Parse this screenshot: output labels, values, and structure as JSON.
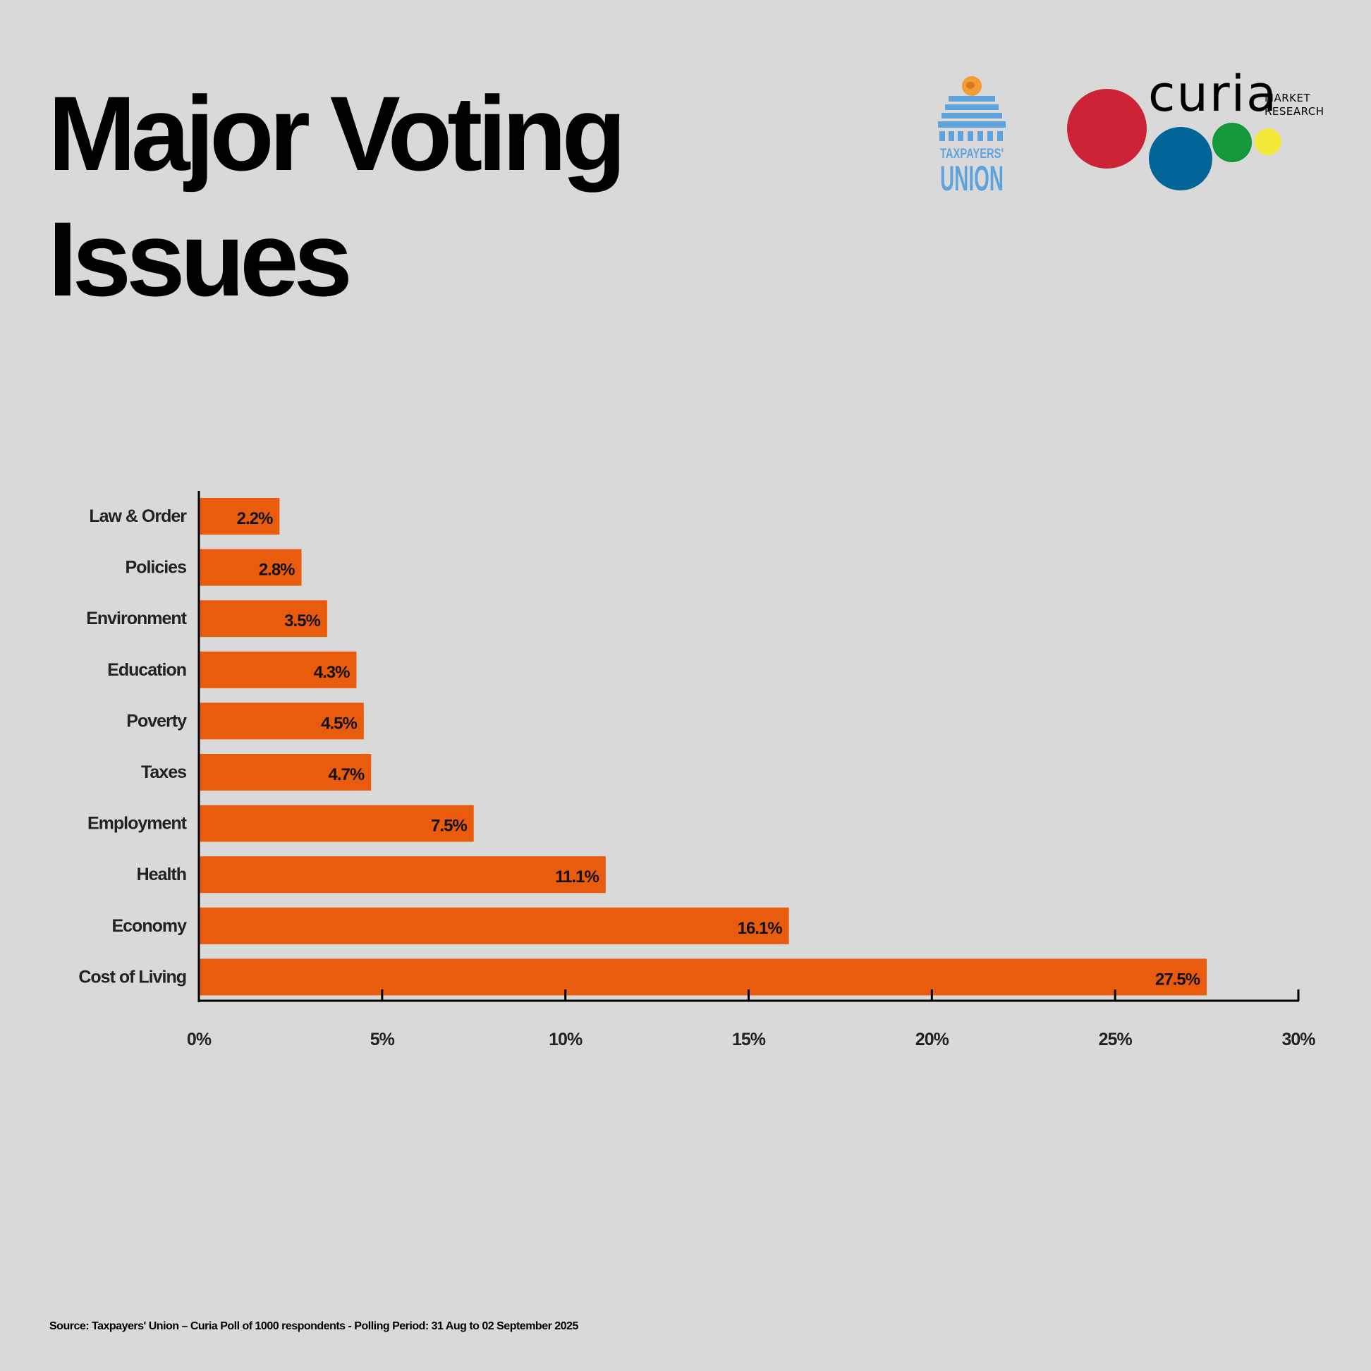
{
  "header": {
    "title_lines": [
      "Major Voting",
      "Issues"
    ]
  },
  "logos": {
    "taxpayers_union": {
      "line1": "TAXPAYERS'",
      "line2": "UNION",
      "color": "#5fa3dc",
      "emblem_color": "#f39b35"
    },
    "curia": {
      "word": "curia",
      "sub_line1": "MARKET",
      "sub_line2": "RESEARCH",
      "circle_colors": [
        "#cc2436",
        "#036498",
        "#14993a",
        "#f4e83a"
      ]
    }
  },
  "chart_data": {
    "type": "bar",
    "orientation": "horizontal",
    "title": "Major Voting Issues",
    "categories": [
      "Law & Order",
      "Policies",
      "Environment",
      "Education",
      "Poverty",
      "Taxes",
      "Employment",
      "Health",
      "Economy",
      "Cost of Living"
    ],
    "values": [
      2.2,
      2.8,
      3.5,
      4.3,
      4.5,
      4.7,
      7.5,
      11.1,
      16.1,
      27.5
    ],
    "value_labels": [
      "2.2%",
      "2.8%",
      "3.5%",
      "4.3%",
      "4.5%",
      "4.7%",
      "7.5%",
      "11.1%",
      "16.1%",
      "27.5%"
    ],
    "xlabel": "",
    "ylabel": "",
    "xlim": [
      0,
      30
    ],
    "x_ticks": [
      0,
      5,
      10,
      15,
      20,
      25,
      30
    ],
    "x_tick_labels": [
      "0%",
      "5%",
      "10%",
      "15%",
      "20%",
      "25%",
      "30%"
    ],
    "grid": false,
    "legend": "none",
    "bar_color": "#ea5c0d"
  },
  "footer": {
    "source": "Source: Taxpayers' Union – Curia Poll of 1000 respondents -  Polling Period: 31 Aug to 02 September 2025"
  }
}
